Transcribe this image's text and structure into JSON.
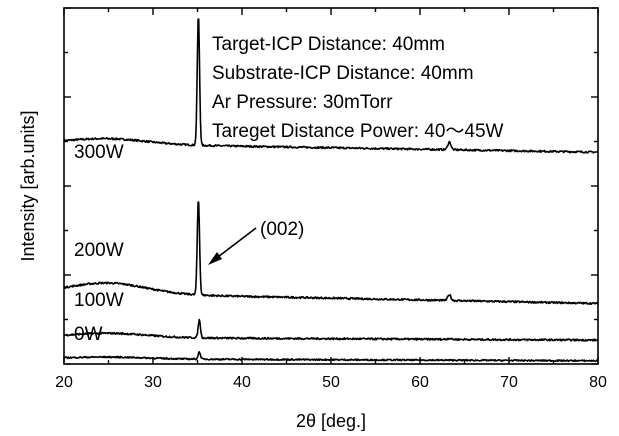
{
  "chart_data": {
    "type": "line",
    "xlabel": "2θ  [deg.]",
    "ylabel": "Intensity [arb.units]",
    "xlim": [
      20,
      80
    ],
    "ylim": [
      0,
      100
    ],
    "y_ticks_labeled": false,
    "grid": false,
    "x_ticks": [
      "20",
      "30",
      "40",
      "50",
      "60",
      "70",
      "80"
    ],
    "annotations": [
      "Target-ICP Distance: 40mm",
      "Substrate-ICP Distance: 40mm",
      "Ar Pressure: 30mTorr",
      "Tareget Distance Power: 40〜45W"
    ],
    "peak_label": "(002)",
    "peak_label_x": 35.2,
    "series": [
      {
        "name": "300W",
        "baseline": 62,
        "hump": 1.5,
        "slope": -2.5,
        "peak_x": 35.1,
        "peak_height": 36.5,
        "noise": 0.25
      },
      {
        "name": "200W",
        "baseline": 20,
        "hump": 3.0,
        "slope": -3.0,
        "peak_x": 35.1,
        "peak_height": 27,
        "noise": 0.25
      },
      {
        "name": "100W",
        "baseline": 7.5,
        "hump": 1.2,
        "slope": -0.8,
        "peak_x": 35.2,
        "peak_height": 5,
        "noise": 0.25
      },
      {
        "name": "0W",
        "baseline": 1.5,
        "hump": 0.5,
        "slope": -0.6,
        "peak_x": 35.2,
        "peak_height": 2,
        "noise": 0.2
      }
    ],
    "legend": "inline"
  }
}
